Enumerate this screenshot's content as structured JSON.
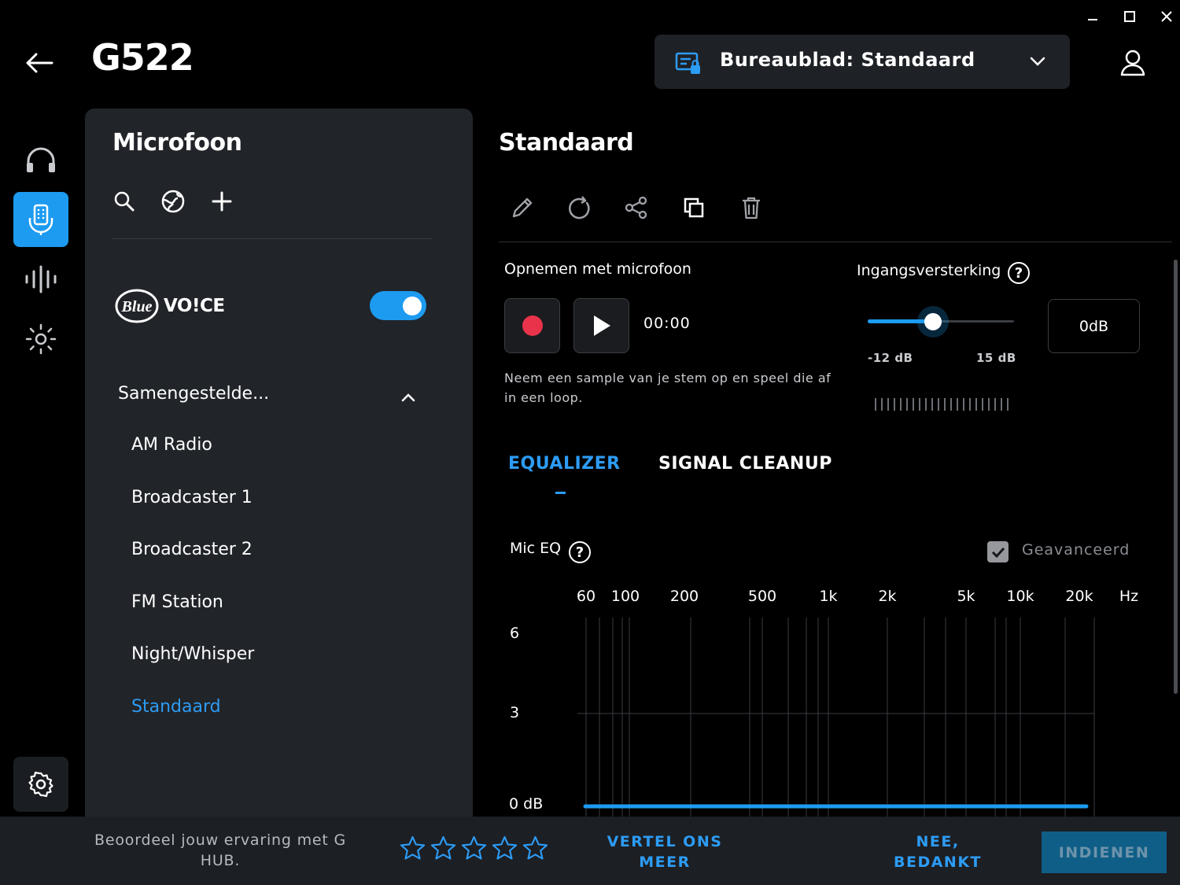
{
  "header": {
    "title": "G522",
    "profile": "Bureaublad: Standaard"
  },
  "window": {
    "minimize": "–",
    "maximize": "☐",
    "close": "✕"
  },
  "rail": {
    "items": [
      "headphones-icon",
      "microphone-icon",
      "equalizer-icon",
      "lighting-icon"
    ],
    "active": "microphone-icon"
  },
  "left_panel": {
    "title": "Microfoon",
    "blue_voice": {
      "logo_text": "Blue",
      "label": "VO!CE",
      "enabled": true
    },
    "group_label": "Samengestelde...",
    "presets": [
      "AM Radio",
      "Broadcaster 1",
      "Broadcaster 2",
      "FM Station",
      "Night/Whisper",
      "Standaard"
    ],
    "active_preset": "Standaard"
  },
  "main": {
    "title": "Standaard",
    "record": {
      "label": "Opnemen met microfoon",
      "time": "00:00",
      "description": "Neem een sample van je stem op en speel die af in een loop."
    },
    "gain": {
      "label": "Ingangsversterking",
      "min_label": "-12 dB",
      "max_label": "15 dB",
      "value": "0dB",
      "value_fraction": 0.44
    },
    "tabs": [
      "EQUALIZER",
      "SIGNAL CLEANUP"
    ],
    "active_tab": "EQUALIZER",
    "eq": {
      "title": "Mic EQ",
      "advanced_label": "Geavanceerd",
      "advanced_checked": true,
      "freq_labels": [
        "60",
        "100",
        "200",
        "500",
        "1k",
        "2k",
        "5k",
        "10k",
        "20k",
        "Hz"
      ],
      "db_labels": [
        "6",
        "3",
        "0 dB"
      ]
    }
  },
  "bottom_bar": {
    "rate_text": "Beoordeel jouw ervaring met G HUB.",
    "stars": 5,
    "more_label": "VERTEL ONS MEER",
    "no_label": "NEE, BEDANKT",
    "submit_label": "INDIENEN"
  },
  "colors": {
    "accent": "#1d9bf0",
    "record": "#e8334a",
    "panel": "#212429"
  }
}
